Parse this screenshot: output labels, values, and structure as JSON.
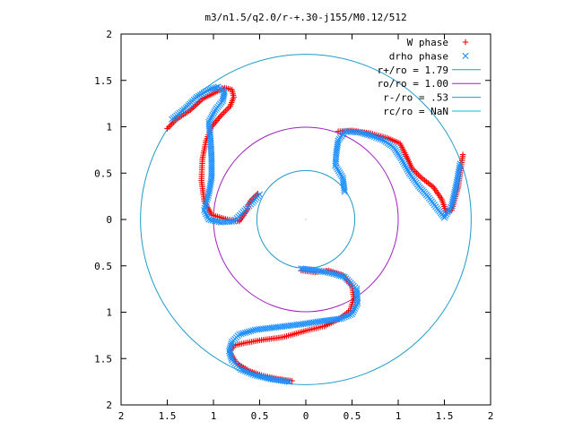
{
  "chart_data": {
    "type": "scatter",
    "title": "m3/n1.5/q2.0/r-+.30-j155/M0.12/512",
    "xlim": [
      -2,
      2
    ],
    "ylim": [
      -2,
      2
    ],
    "x_tick_values": [
      -2,
      -1.5,
      -1,
      -0.5,
      0,
      0.5,
      1,
      1.5,
      2
    ],
    "x_tick_labels": [
      "2",
      "1.5",
      "1",
      "0.5",
      "0",
      "0.5",
      "1",
      "1.5",
      "2"
    ],
    "y_tick_values": [
      2,
      1.5,
      1,
      0.5,
      0,
      -0.5,
      -1,
      -1.5,
      -2
    ],
    "y_tick_labels": [
      "2",
      "1.5",
      "1",
      "0.5",
      "0",
      "0.5",
      "1",
      "1.5",
      "2"
    ],
    "grid": false,
    "legend_position": "top-right",
    "series": [
      {
        "name": "W phase",
        "marker": "plus",
        "color": "#ff0000",
        "arms": [
          [
            [
              -1.5,
              0.98
            ],
            [
              -1.4,
              1.08
            ],
            [
              -1.25,
              1.18
            ],
            [
              -1.12,
              1.3
            ],
            [
              -0.98,
              1.37
            ],
            [
              -0.88,
              1.42
            ],
            [
              -0.8,
              1.4
            ],
            [
              -0.78,
              1.32
            ],
            [
              -0.82,
              1.22
            ],
            [
              -0.92,
              1.12
            ],
            [
              -1.02,
              1.0
            ],
            [
              -1.08,
              0.85
            ],
            [
              -1.12,
              0.65
            ],
            [
              -1.13,
              0.42
            ],
            [
              -1.1,
              0.2
            ],
            [
              -1.02,
              0.05
            ],
            [
              -0.85,
              0.0
            ],
            [
              -0.72,
              -0.02
            ],
            [
              -0.65,
              0.08
            ],
            [
              -0.6,
              0.2
            ],
            [
              -0.52,
              0.28
            ]
          ],
          [
            [
              0.35,
              0.95
            ],
            [
              0.5,
              0.96
            ],
            [
              0.7,
              0.93
            ],
            [
              0.88,
              0.88
            ],
            [
              1.02,
              0.82
            ],
            [
              1.08,
              0.7
            ],
            [
              1.15,
              0.55
            ],
            [
              1.25,
              0.45
            ],
            [
              1.38,
              0.35
            ],
            [
              1.47,
              0.22
            ],
            [
              1.52,
              0.08
            ],
            [
              1.58,
              0.1
            ],
            [
              1.65,
              0.35
            ],
            [
              1.7,
              0.7
            ]
          ],
          [
            [
              -0.05,
              -0.55
            ],
            [
              0.1,
              -0.57
            ],
            [
              0.25,
              -0.55
            ],
            [
              0.4,
              -0.6
            ],
            [
              0.5,
              -0.72
            ],
            [
              0.52,
              -0.85
            ],
            [
              0.48,
              -0.98
            ],
            [
              0.35,
              -1.08
            ],
            [
              0.2,
              -1.15
            ],
            [
              0.0,
              -1.2
            ],
            [
              -0.25,
              -1.27
            ],
            [
              -0.48,
              -1.3
            ],
            [
              -0.65,
              -1.33
            ],
            [
              -0.78,
              -1.36
            ],
            [
              -0.82,
              -1.43
            ],
            [
              -0.75,
              -1.55
            ],
            [
              -0.62,
              -1.63
            ],
            [
              -0.48,
              -1.68
            ],
            [
              -0.3,
              -1.72
            ],
            [
              -0.15,
              -1.74
            ]
          ]
        ]
      },
      {
        "name": "drho phase",
        "marker": "cross",
        "color": "#1e90ff",
        "arms": [
          [
            [
              -1.45,
              1.08
            ],
            [
              -1.3,
              1.2
            ],
            [
              -1.18,
              1.32
            ],
            [
              -1.05,
              1.4
            ],
            [
              -0.95,
              1.43
            ],
            [
              -0.88,
              1.38
            ],
            [
              -0.9,
              1.28
            ],
            [
              -0.98,
              1.18
            ],
            [
              -1.05,
              1.05
            ],
            [
              -1.03,
              0.85
            ],
            [
              -1.02,
              0.65
            ],
            [
              -1.02,
              0.45
            ],
            [
              -1.05,
              0.28
            ],
            [
              -1.1,
              0.1
            ],
            [
              -1.05,
              0.0
            ],
            [
              -0.92,
              -0.03
            ],
            [
              -0.78,
              -0.02
            ],
            [
              -0.68,
              0.08
            ],
            [
              -0.58,
              0.18
            ],
            [
              -0.5,
              0.27
            ]
          ],
          [
            [
              0.42,
              0.3
            ],
            [
              0.4,
              0.45
            ],
            [
              0.32,
              0.58
            ],
            [
              0.33,
              0.72
            ],
            [
              0.35,
              0.85
            ],
            [
              0.42,
              0.95
            ],
            [
              0.58,
              0.94
            ],
            [
              0.72,
              0.9
            ],
            [
              0.85,
              0.85
            ],
            [
              0.95,
              0.78
            ],
            [
              1.03,
              0.66
            ],
            [
              1.12,
              0.5
            ],
            [
              1.22,
              0.36
            ],
            [
              1.32,
              0.25
            ],
            [
              1.42,
              0.12
            ],
            [
              1.5,
              0.02
            ],
            [
              1.58,
              0.15
            ],
            [
              1.63,
              0.38
            ],
            [
              1.67,
              0.6
            ]
          ],
          [
            [
              -0.05,
              -0.53
            ],
            [
              0.12,
              -0.55
            ],
            [
              0.28,
              -0.58
            ],
            [
              0.42,
              -0.62
            ],
            [
              0.55,
              -0.75
            ],
            [
              0.56,
              -0.9
            ],
            [
              0.5,
              -1.02
            ],
            [
              0.38,
              -1.07
            ],
            [
              0.15,
              -1.1
            ],
            [
              -0.05,
              -1.13
            ],
            [
              -0.3,
              -1.16
            ],
            [
              -0.55,
              -1.19
            ],
            [
              -0.72,
              -1.24
            ],
            [
              -0.8,
              -1.32
            ],
            [
              -0.83,
              -1.42
            ],
            [
              -0.8,
              -1.52
            ],
            [
              -0.7,
              -1.62
            ],
            [
              -0.55,
              -1.68
            ],
            [
              -0.38,
              -1.72
            ],
            [
              -0.18,
              -1.75
            ]
          ]
        ]
      },
      {
        "name": "r+/ro = 1.79",
        "type": "circle",
        "radius": 1.79,
        "color": "#1f9bc8"
      },
      {
        "name": "ro/ro = 1.00",
        "type": "circle",
        "radius": 1.0,
        "color": "#a020c0"
      },
      {
        "name": "r-/ro = .53",
        "type": "circle",
        "radius": 0.53,
        "color": "#1f9bc8"
      },
      {
        "name": "rc/ro = NaN",
        "type": "circle",
        "radius": null,
        "color": "#00bfd0"
      }
    ]
  }
}
